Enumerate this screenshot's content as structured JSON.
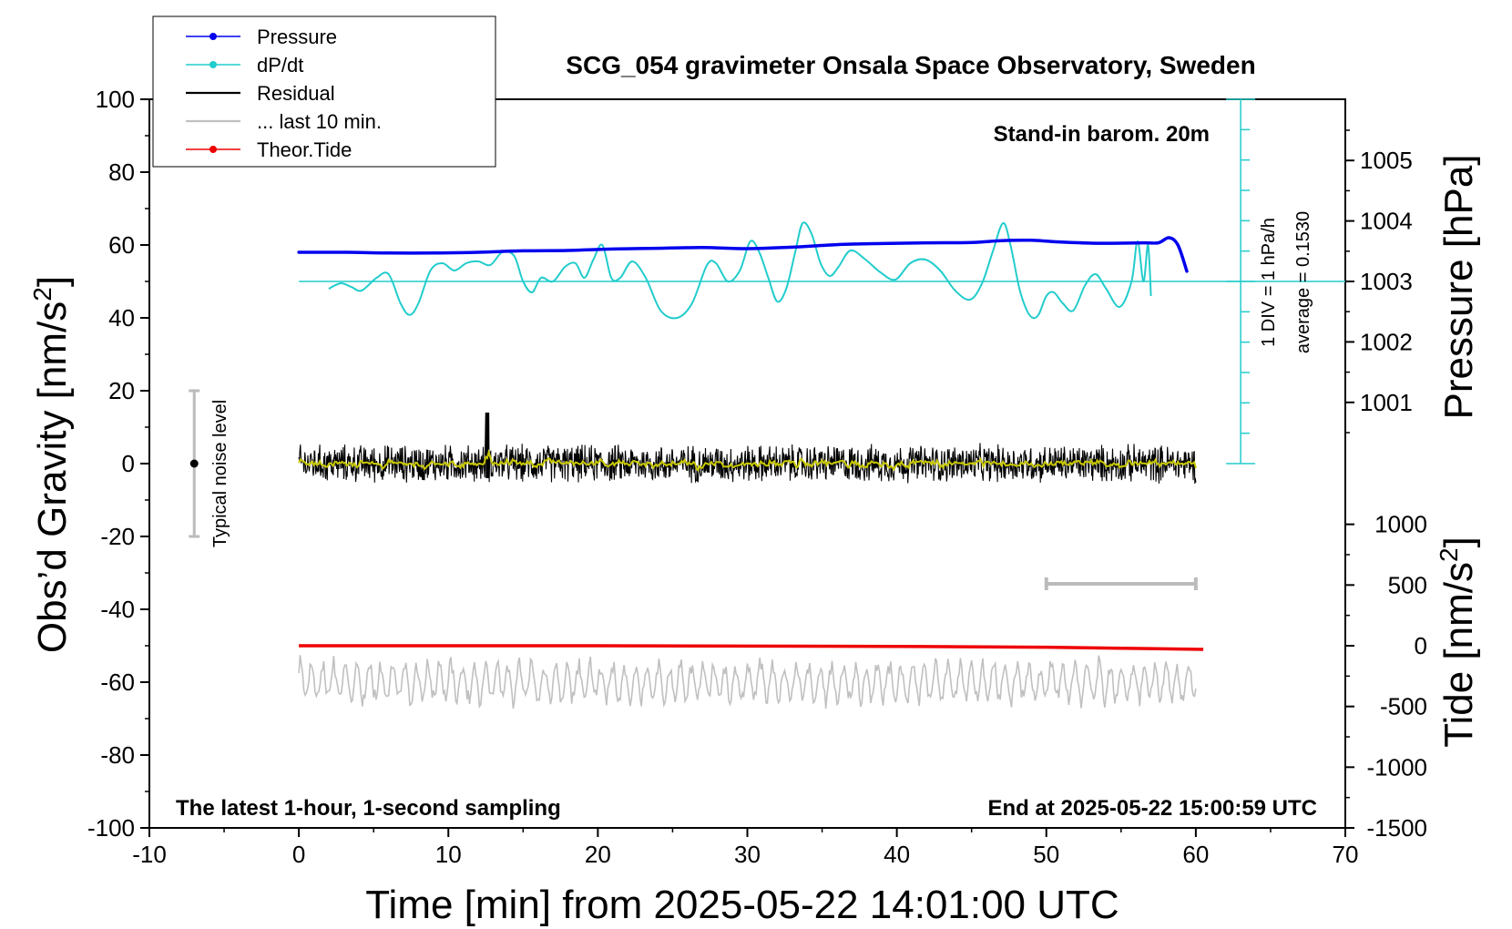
{
  "chart_data": {
    "type": "line",
    "title": "SCG_054 gravimeter Onsala Space Observatory, Sweden",
    "xlabel": "Time [min] from 2025-05-22 14:01:00 UTC",
    "xlim": [
      -10,
      70
    ],
    "xticks": [
      -10,
      0,
      10,
      20,
      30,
      40,
      50,
      60,
      70
    ],
    "ylabel_left": {
      "text": "Obs’d Gravity [nm/s",
      "sup": "2",
      "end": "]"
    },
    "ylim_left": [
      -100,
      100
    ],
    "yticks_left": [
      -100,
      -80,
      -60,
      -40,
      -20,
      0,
      20,
      40,
      60,
      80,
      100
    ],
    "ylabel_right_pressure": "Pressure [hPa]",
    "pressure_ticks": [
      1001,
      1002,
      1003,
      1004,
      1005
    ],
    "pressure_axis_map": {
      "value_at_gravity_50": 1003,
      "gravity_units_per_hPa": 16.6
    },
    "ylabel_right_tide": {
      "text": "Tide [nm/s",
      "sup": "2",
      "end": "]"
    },
    "tide_ticks": [
      -1500,
      -1000,
      -500,
      0,
      500,
      1000
    ],
    "tide_axis_map": {
      "value_at_gravity_-100": -1500,
      "value_at_gravity_-50": 0
    },
    "legend": {
      "position": "top-left",
      "entries": [
        {
          "label": "Pressure",
          "color": "#0000ee",
          "style": "line-dot"
        },
        {
          "label": "dP/dt",
          "color": "#22cccc",
          "style": "line-dot"
        },
        {
          "label": "Residual",
          "color": "#000000",
          "style": "line"
        },
        {
          "label": "... last 10 min.",
          "color": "#c0c0c0",
          "style": "line"
        },
        {
          "label": "Theor.Tide",
          "color": "#ee0000",
          "style": "line-dot"
        }
      ]
    },
    "annotations": {
      "stand_in": "Stand-in barom. 20m",
      "scale_div": "1 DIV = 1 hPa/h",
      "average": "average = 0.1530",
      "noise": "Typical noise level",
      "bottom_left": "The latest 1-hour, 1-second sampling",
      "bottom_right": "End at 2025-05-22 15:00:59 UTC"
    },
    "noise_bar": {
      "x": -7,
      "center": 0,
      "half_range": 20
    },
    "last10_bar": {
      "x_start": 50,
      "x_end": 60,
      "y": -33
    },
    "dpdt_scale_axis": {
      "x": 63,
      "y_top": 100,
      "y_bottom": 0,
      "baseline": 50
    },
    "series": {
      "pressure": {
        "color": "#0000ee",
        "x": [
          0,
          3,
          6,
          9,
          12,
          15,
          18,
          21,
          24,
          27,
          30,
          33,
          36,
          39,
          42,
          45,
          47,
          49,
          51,
          53,
          55,
          56.5,
          57.5,
          58.2,
          58.8,
          59.4
        ],
        "y": [
          58,
          58,
          57.8,
          57.8,
          58.0,
          58.4,
          58.5,
          58.9,
          59.1,
          59.3,
          59.0,
          59.4,
          60.1,
          60.4,
          60.6,
          60.7,
          61.2,
          61.3,
          60.8,
          60.5,
          60.5,
          60.6,
          60.6,
          62.0,
          60.0,
          52.8
        ]
      },
      "dpdt": {
        "color": "#22cccc",
        "x": [
          2,
          2.8,
          3.5,
          4.2,
          5.2,
          6.0,
          6.8,
          7.4,
          8.0,
          8.8,
          9.6,
          10.4,
          11.2,
          12.0,
          12.8,
          13.6,
          14.4,
          15.0,
          15.6,
          16.2,
          17.0,
          17.8,
          18.5,
          19.1,
          19.7,
          20.3,
          20.9,
          21.5,
          22.3,
          23.2,
          24.2,
          25.3,
          26.3,
          27.3,
          27.9,
          28.7,
          29.5,
          30.2,
          30.8,
          31.4,
          32.0,
          32.6,
          33.2,
          33.7,
          34.3,
          34.9,
          35.5,
          36.1,
          36.9,
          37.9,
          38.9,
          39.9,
          40.9,
          41.9,
          42.9,
          43.9,
          44.9,
          45.7,
          46.4,
          47.1,
          47.6,
          48.2,
          48.7,
          49.1,
          49.5,
          50.0,
          50.5,
          51.1,
          51.8,
          52.6,
          53.3,
          54.0,
          54.9,
          55.7,
          56.1,
          56.5,
          56.8,
          57.0
        ],
        "y": [
          48,
          49.5,
          48.5,
          47.5,
          51,
          52,
          44,
          40.8,
          44,
          53,
          55,
          53,
          55,
          55.5,
          54.5,
          58,
          57,
          50,
          47,
          51,
          50,
          54,
          55,
          51,
          56,
          60,
          51,
          51,
          55.5,
          51,
          42,
          40,
          44,
          54.5,
          55,
          50,
          53,
          61,
          58,
          51,
          44.5,
          48,
          58,
          66,
          63,
          55,
          51.5,
          54,
          58.5,
          56,
          52.5,
          50.5,
          55,
          56,
          53,
          47.5,
          45,
          49.5,
          58,
          66,
          60,
          48,
          42,
          40,
          41,
          46,
          47,
          44,
          42,
          49,
          52,
          48,
          43,
          50,
          61,
          50,
          60,
          46
        ]
      },
      "theor_tide": {
        "color": "#ee0000",
        "x": [
          0,
          20,
          40,
          50,
          55,
          60.5
        ],
        "y": [
          0,
          0,
          -5,
          -12,
          -20,
          -30
        ]
      },
      "residual": {
        "color": "#000000",
        "x_range": [
          0,
          60
        ],
        "noise_amplitude": 4.5,
        "spike": {
          "x": 12.6,
          "y": [
            14,
            -4
          ]
        }
      },
      "residual_smooth": {
        "color": "#c8c800"
      },
      "last10": {
        "color": "#c0c0c0",
        "x_range": [
          0,
          60
        ],
        "baseline": -60,
        "amplitude": 6
      }
    }
  }
}
